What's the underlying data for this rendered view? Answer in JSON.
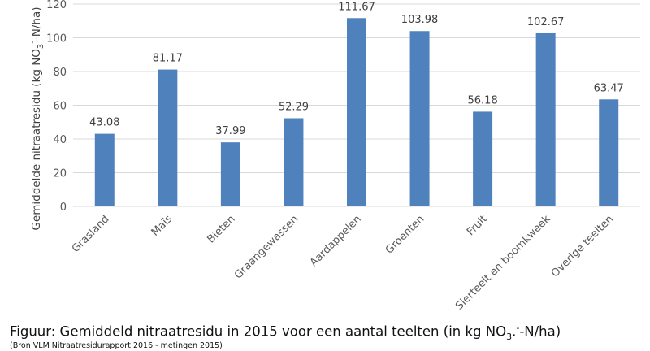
{
  "chart_data": {
    "type": "bar",
    "categories": [
      "Grasland",
      "Maïs",
      "Bieten",
      "Graangewassen",
      "Aardappelen",
      "Groenten",
      "Fruit",
      "Sierteelt en boomkweek",
      "Overige teelten"
    ],
    "values": [
      43.08,
      81.17,
      37.99,
      52.29,
      111.67,
      103.98,
      56.18,
      102.67,
      63.47
    ],
    "value_labels": [
      "43.08",
      "81.17",
      "37.99",
      "52.29",
      "111.67",
      "103.98",
      "56.18",
      "102.67",
      "63.47"
    ],
    "ylabel": "Gemiddelde nitraatresidu (kg NO3--N/ha)",
    "ylim": [
      0,
      120
    ],
    "yticks": [
      0,
      20,
      40,
      60,
      80,
      100,
      120
    ],
    "grid": true,
    "bar_color": "#4F81BD",
    "grid_color": "#D9D9D9"
  },
  "caption": {
    "prefix": "Figuur: Gemiddeld nitraatresidu in 2015 voor een aantal teelten (in kg NO",
    "sub": "3",
    "dot": ".",
    "sup": "-",
    "suffix": "-N/ha)"
  },
  "source": "(Bron VLM Nitraatresidurapport 2016 - metingen 2015)"
}
